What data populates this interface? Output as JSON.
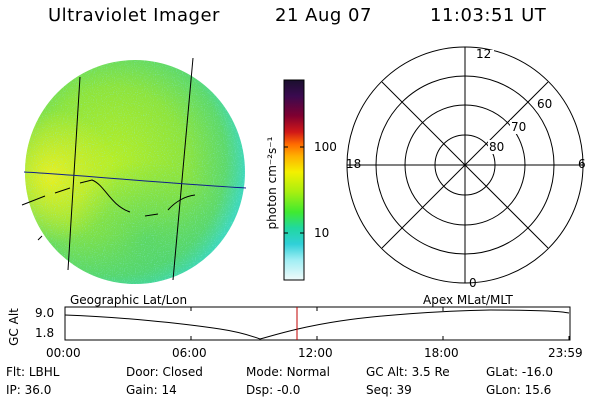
{
  "header": {
    "instrument": "Ultraviolet Imager",
    "date": "21 Aug 07",
    "time": "11:03:51 UT"
  },
  "colorbar": {
    "unit_label": "photon cm⁻²s⁻¹",
    "tick_labels": [
      "100",
      "10"
    ],
    "colors": [
      "#1a0f2e",
      "#2b0d4f",
      "#4b0b5a",
      "#800020",
      "#c00020",
      "#e03010",
      "#ff8000",
      "#ffcc00",
      "#f0f000",
      "#b0f000",
      "#40f020",
      "#20e080",
      "#20d0d0",
      "#80e8f0",
      "#e0f8f8"
    ]
  },
  "polar_plot": {
    "lat_labels": [
      "60",
      "70",
      "80"
    ],
    "mlt_labels": [
      "12",
      "18",
      "6",
      "0"
    ]
  },
  "timeline": {
    "left_title": "Geographic Lat/Lon",
    "right_title": "Apex MLat/MLT",
    "y_axis_label": "GC Alt",
    "y_ticks": [
      "9.0",
      "1.8"
    ],
    "x_ticks": [
      "00:00",
      "06:00",
      "12:00",
      "18:00",
      "23:59"
    ],
    "current_time_marker_color": "#c00000"
  },
  "metadata": {
    "row1": [
      {
        "key": "Flt",
        "value": "LBHL"
      },
      {
        "key": "Door",
        "value": "Closed"
      },
      {
        "key": "Mode",
        "value": "Normal"
      },
      {
        "key": "GC Alt",
        "value": "3.5 Re"
      },
      {
        "key": "GLat",
        "value": "-16.0"
      }
    ],
    "row2": [
      {
        "key": "IP",
        "value": "36.0"
      },
      {
        "key": "Gain",
        "value": "14"
      },
      {
        "key": "Dsp",
        "value": "-0.0"
      },
      {
        "key": "Seq",
        "value": "39"
      },
      {
        "key": "GLon",
        "value": "15.6"
      }
    ]
  }
}
